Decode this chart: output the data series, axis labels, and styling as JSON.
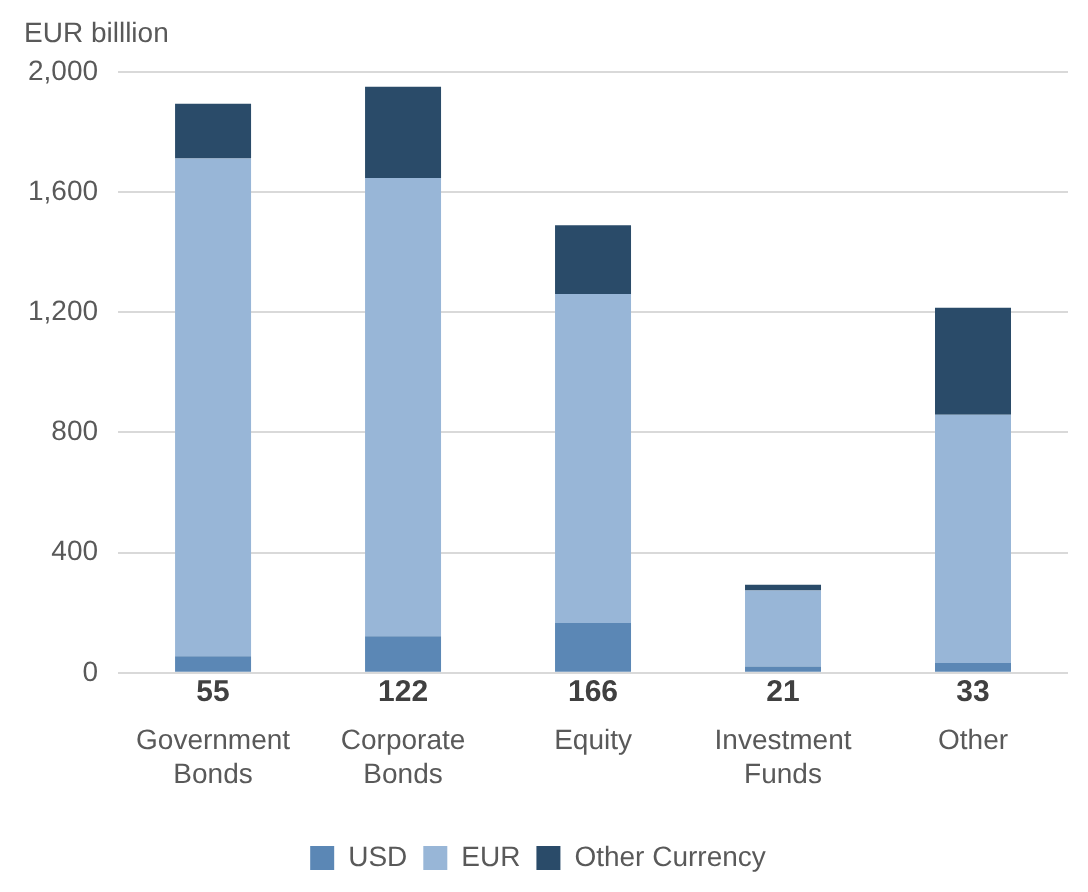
{
  "chart_data": {
    "type": "bar",
    "ylabel": "EUR billlion",
    "categories": [
      "Government Bonds",
      "Corporate Bonds",
      "Equity",
      "Investment Funds",
      "Other"
    ],
    "stacked": true,
    "series": [
      {
        "name": "USD",
        "color": "#5b87b5",
        "values": [
          55,
          122,
          166,
          21,
          33
        ],
        "value_labels": [
          "55",
          "122",
          "166",
          "21",
          "33"
        ]
      },
      {
        "name": "EUR",
        "color": "#98b6d7",
        "values": [
          1657,
          1525,
          1095,
          253,
          826
        ]
      },
      {
        "name": "Other Currency",
        "color": "#2a4b69",
        "values": [
          182,
          304,
          229,
          19,
          356
        ]
      }
    ],
    "ylim": [
      0,
      2000
    ],
    "yticks": [
      0,
      400,
      800,
      {
        "value": 1200,
        "label": "1,200"
      },
      {
        "value": 1600,
        "label": "1,600"
      },
      {
        "value": 2000,
        "label": "2,000"
      }
    ],
    "grid": "y",
    "legend": "bottom"
  }
}
